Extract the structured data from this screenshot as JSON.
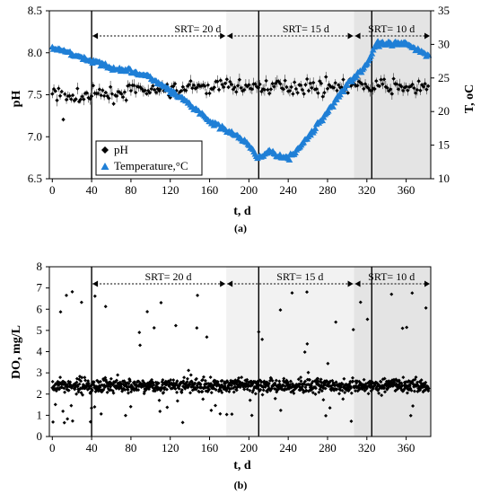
{
  "chart_data": [
    {
      "type": "scatter",
      "panel_label": "(a)",
      "xlabel": "t, d",
      "ylabel_left": "pH",
      "ylabel_right": "T, oC",
      "x_ticks": [
        "0",
        "40",
        "80",
        "120",
        "160",
        "200",
        "240",
        "280",
        "320",
        "360"
      ],
      "y_left_ticks": [
        "6.5",
        "7.0",
        "7.5",
        "8.0",
        "8.5"
      ],
      "y_right_ticks": [
        "10",
        "15",
        "20",
        "25",
        "30",
        "35"
      ],
      "xlim": [
        -3,
        385
      ],
      "ylim_left": [
        6.5,
        8.5
      ],
      "ylim_right": [
        10,
        35
      ],
      "phases": [
        {
          "label": "SRT= 20 d",
          "start": 40,
          "end": 177,
          "shade": "#ffffff"
        },
        {
          "label": "SRT= 15 d",
          "start": 177,
          "end": 307,
          "shade": "#f2f2f2"
        },
        {
          "label": "SRT= 10 d",
          "start": 307,
          "end": 385,
          "shade": "#e4e4e4"
        }
      ],
      "vertical_lines": [
        40,
        210,
        325
      ],
      "legend": {
        "position": "bottom-left",
        "entries": [
          "pH",
          "Temperature,°C"
        ]
      },
      "series": [
        {
          "name": "pH",
          "marker": "diamond",
          "color": "#000000",
          "trend_x": [
            0,
            20,
            40,
            60,
            80,
            120,
            160,
            200,
            240,
            280,
            320,
            360,
            385
          ],
          "trend_y": [
            7.55,
            7.45,
            7.5,
            7.5,
            7.55,
            7.55,
            7.6,
            7.6,
            7.6,
            7.6,
            7.6,
            7.6,
            7.55
          ]
        },
        {
          "name": "Temperature,°C",
          "marker": "triangle",
          "color": "#1f7fd6",
          "x": [
            0,
            20,
            40,
            60,
            80,
            100,
            120,
            140,
            160,
            180,
            200,
            210,
            220,
            240,
            260,
            280,
            300,
            320,
            330,
            340,
            360,
            375,
            385
          ],
          "y": [
            29.5,
            28.5,
            27.5,
            26.5,
            26,
            25,
            23,
            21,
            18.5,
            17,
            15,
            13,
            14,
            13,
            16,
            20,
            24,
            27,
            30,
            30,
            30,
            29,
            28
          ]
        }
      ]
    },
    {
      "type": "scatter",
      "panel_label": "(b)",
      "xlabel": "t, d",
      "ylabel": "DO, mg/L",
      "x_ticks": [
        "0",
        "40",
        "80",
        "120",
        "160",
        "200",
        "240",
        "280",
        "320",
        "360"
      ],
      "y_ticks": [
        "0",
        "1",
        "2",
        "3",
        "4",
        "5",
        "6",
        "7",
        "8"
      ],
      "xlim": [
        -3,
        385
      ],
      "ylim": [
        0,
        8
      ],
      "phases": [
        {
          "label": "SRT= 20 d",
          "start": 40,
          "end": 177,
          "shade": "#ffffff"
        },
        {
          "label": "SRT= 15 d",
          "start": 177,
          "end": 307,
          "shade": "#f2f2f2"
        },
        {
          "label": "SRT= 10 d",
          "start": 307,
          "end": 385,
          "shade": "#e4e4e4"
        }
      ],
      "vertical_lines": [
        40,
        210,
        325
      ],
      "series": [
        {
          "name": "DO",
          "marker": "diamond",
          "color": "#000000",
          "typical_range": [
            1.8,
            3.0
          ],
          "median": 2.4,
          "outlier_max": 7.0
        }
      ]
    }
  ]
}
